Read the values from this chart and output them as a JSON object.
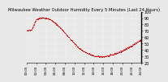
{
  "title": "Milwaukee Weather Outdoor Humidity Every 5 Minutes (Last 24 Hours)",
  "bg_color": "#e8e8e8",
  "plot_bg_color": "#e8e8e8",
  "grid_color": "#ffffff",
  "line_color": "#cc0000",
  "y_ctrl": [
    70,
    72,
    88,
    91,
    90,
    88,
    82,
    75,
    67,
    58,
    50,
    43,
    38,
    34,
    31,
    30,
    30,
    31,
    33,
    36,
    39,
    43,
    47,
    52,
    56
  ],
  "ylim": [
    20,
    100
  ],
  "yticks": [
    20,
    30,
    40,
    50,
    60,
    70,
    80,
    90,
    100
  ],
  "ylabel_fontsize": 3.5,
  "xlabel_fontsize": 2.8,
  "title_fontsize": 3.8,
  "line_width": 0.7,
  "marker_size": 1.2,
  "num_points": 288
}
